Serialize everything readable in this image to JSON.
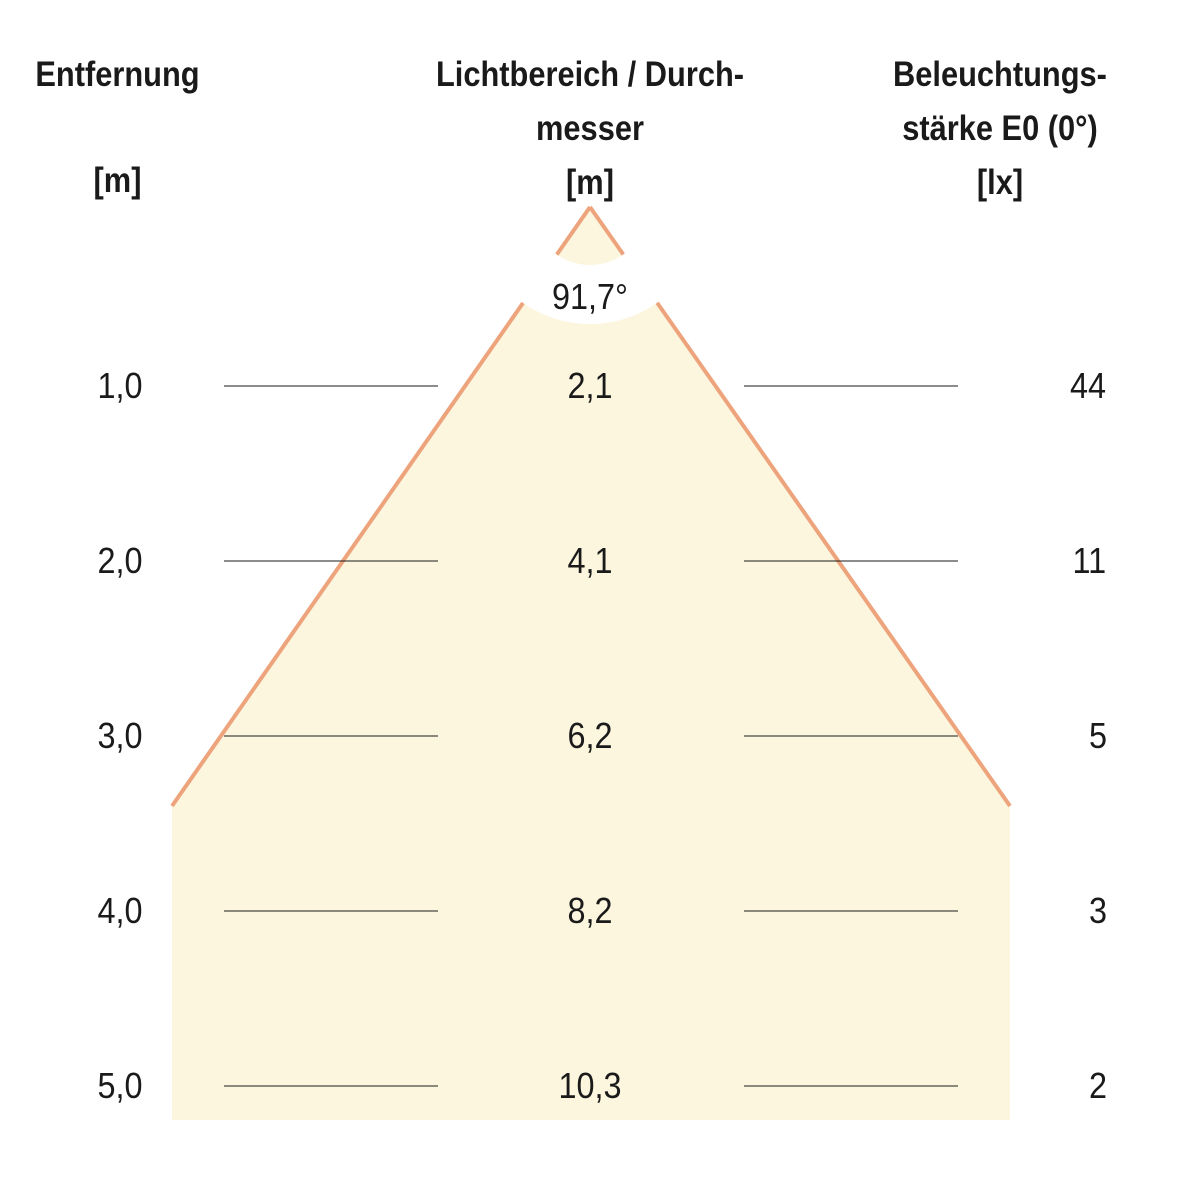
{
  "headers": {
    "distance": {
      "title": "Entfernung",
      "unit": "[m]"
    },
    "diameter": {
      "title_line1": "Lichtbereich / Durch-",
      "title_line2": "messer",
      "unit": "[m]"
    },
    "illuminance": {
      "title_line1": "Beleuchtungs-",
      "title_line2": "stärke E0 (0°)",
      "unit": "[lx]"
    }
  },
  "beam_angle": "91,7°",
  "rows": [
    {
      "distance": "1,0",
      "diameter": "2,1",
      "illuminance": "44"
    },
    {
      "distance": "2,0",
      "diameter": "4,1",
      "illuminance": "11"
    },
    {
      "distance": "3,0",
      "diameter": "6,2",
      "illuminance": "5"
    },
    {
      "distance": "4,0",
      "diameter": "8,2",
      "illuminance": "3"
    },
    {
      "distance": "5,0",
      "diameter": "10,3",
      "illuminance": "2"
    }
  ],
  "colors": {
    "cone_fill": "#fcf6de",
    "cone_edge": "#eda47c",
    "rule": "#1a1a1a"
  }
}
